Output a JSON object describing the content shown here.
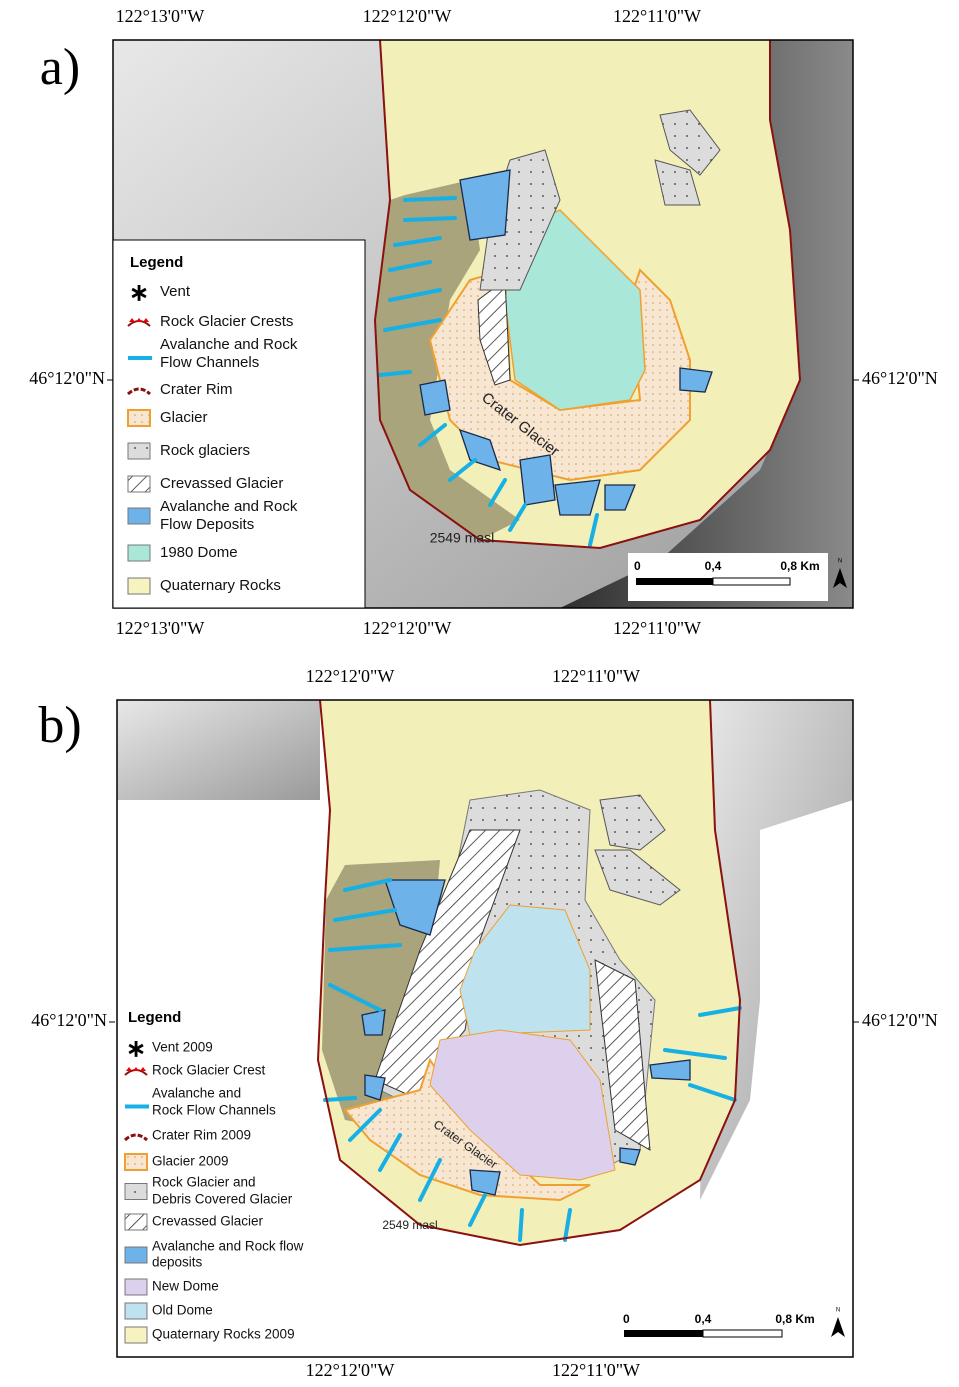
{
  "panels": [
    {
      "label": "a)",
      "top_labels": [
        "122°13'0\"W",
        "122°12'0\"W",
        "122°11'0\"W"
      ],
      "bottom_labels": [
        "122°13'0\"W",
        "122°12'0\"W",
        "122°11'0\"W"
      ],
      "left_label": "46°12'0\"N",
      "right_label": "46°12'0\"N",
      "legend": {
        "title": "Legend",
        "items": [
          {
            "lines": [
              "Vent"
            ]
          },
          {
            "lines": [
              "Rock Glacier Crests"
            ]
          },
          {
            "lines": [
              "Avalanche and Rock",
              "Flow Channels"
            ]
          },
          {
            "lines": [
              "Crater Rim"
            ]
          },
          {
            "lines": [
              "Glacier"
            ]
          },
          {
            "lines": [
              "Rock glaciers"
            ]
          },
          {
            "lines": [
              "Crevassed Glacier"
            ]
          },
          {
            "lines": [
              "Avalanche and Rock",
              "Flow Deposits"
            ]
          },
          {
            "lines": [
              "1980 Dome"
            ]
          },
          {
            "lines": [
              "Quaternary Rocks"
            ]
          }
        ]
      },
      "map_labels": [
        "Crater Glacier",
        "2549 masl"
      ],
      "scale": [
        "0",
        "0,4",
        "0,8 Km"
      ],
      "north": "N"
    },
    {
      "label": "b)",
      "top_labels": [
        "122°12'0\"W",
        "122°11'0\"W"
      ],
      "bottom_labels": [
        "122°12'0\"W",
        "122°11'0\"W"
      ],
      "left_label": "46°12'0\"N",
      "right_label": "46°12'0\"N",
      "legend": {
        "title": "Legend",
        "items": [
          {
            "lines": [
              "Vent 2009"
            ]
          },
          {
            "lines": [
              "Rock Glacier Crest"
            ]
          },
          {
            "lines": [
              "Avalanche and",
              "Rock Flow Channels"
            ]
          },
          {
            "lines": [
              "Crater Rim 2009"
            ]
          },
          {
            "lines": [
              "Glacier 2009"
            ]
          },
          {
            "lines": [
              "Rock Glacier and",
              "Debris Covered Glacier"
            ]
          },
          {
            "lines": [
              "Crevassed Glacier"
            ]
          },
          {
            "lines": [
              "Avalanche and Rock flow",
              "deposits"
            ]
          },
          {
            "lines": [
              "New Dome"
            ]
          },
          {
            "lines": [
              "Old Dome"
            ]
          },
          {
            "lines": [
              "Quaternary Rocks 2009"
            ]
          }
        ]
      },
      "map_labels": [
        "Crater Glacier",
        "2549 masl"
      ],
      "scale": [
        "0",
        "0,4",
        "0,8 Km"
      ],
      "north": "N"
    }
  ]
}
